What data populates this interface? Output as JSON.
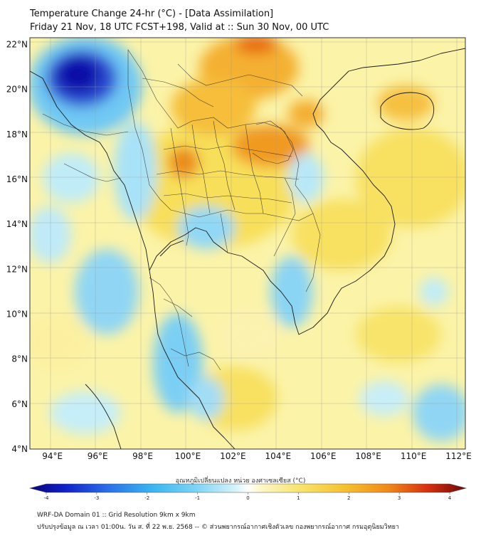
{
  "header": {
    "title": "Temperature Change 24-hr (°C) - [Data Assimilation]",
    "subtitle": "Friday 21 Nov, 18 UTC FCST+198, Valid at :: Sun 30 Nov, 00 UTC"
  },
  "map": {
    "lat_labels": [
      "22°N",
      "20°N",
      "18°N",
      "16°N",
      "14°N",
      "12°N",
      "10°N",
      "8°N",
      "6°N",
      "4°N"
    ],
    "lon_labels": [
      "94°E",
      "96°E",
      "98°E",
      "100°E",
      "102°E",
      "104°E",
      "106°E",
      "108°E",
      "110°E",
      "112°E"
    ],
    "lat_range": [
      4,
      22.3
    ],
    "lon_range": [
      93,
      112.3
    ]
  },
  "colorbar": {
    "label": "อุณหภูมิเปลี่ยนแปลง หน่วย องศาเซลเซียส (°C)",
    "ticks": [
      "-4",
      "-3",
      "-2",
      "-1",
      "0",
      "1",
      "2",
      "3",
      "4"
    ],
    "range": [
      -4,
      4
    ]
  },
  "footer": {
    "line1": "WRF-DA Domain 01 :: Grid Resolution 9km x 9km",
    "line2": "ปรับปรุงข้อมูล ณ เวลา 01:00น. วัน ส. ที่ 22 พ.ย. 2568 -- © ส่วนพยากรณ์อากาศเชิงตัวเลข กองพยากรณ์อากาศ กรมอุตุนิยมวิทยา"
  },
  "colors": {
    "very_cold": "#0a0aa8",
    "cold": "#3ab8f0",
    "light_cold": "#c8eef8",
    "neutral": "#f7f7d0",
    "warm": "#f5dc40",
    "hot": "#f08a18",
    "very_hot": "#a01010"
  }
}
